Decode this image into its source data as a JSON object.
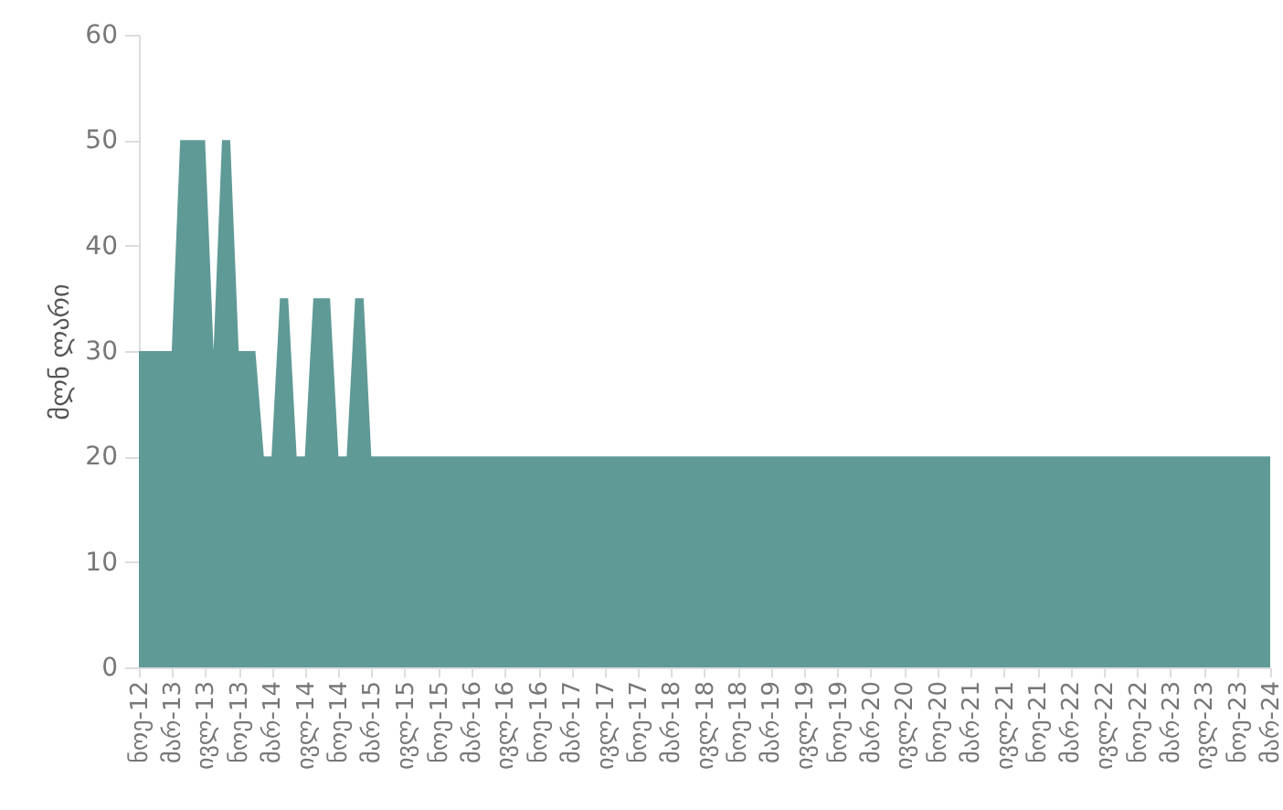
{
  "chart_data": {
    "type": "area",
    "ylabel": "მლნ ლარი",
    "color": "#5f9a96",
    "x": [
      "2012-11",
      "2012-12",
      "2013-01",
      "2013-02",
      "2013-03",
      "2013-04",
      "2013-05",
      "2013-06",
      "2013-07",
      "2013-08",
      "2013-09",
      "2013-10",
      "2013-11",
      "2013-12",
      "2014-01",
      "2014-02",
      "2014-03",
      "2014-04",
      "2014-05",
      "2014-06",
      "2014-07",
      "2014-08",
      "2014-09",
      "2014-10",
      "2014-11",
      "2014-12",
      "2015-01",
      "2015-02",
      "2015-03",
      "2015-04",
      "2015-05",
      "2015-06",
      "2015-07",
      "2015-08",
      "2015-09",
      "2015-10",
      "2015-11",
      "2015-12",
      "2016-01",
      "2016-02",
      "2016-03",
      "2016-04",
      "2016-05",
      "2016-06",
      "2016-07",
      "2016-08",
      "2016-09",
      "2016-10",
      "2016-11",
      "2016-12",
      "2017-01",
      "2017-02",
      "2017-03",
      "2017-04",
      "2017-05",
      "2017-06",
      "2017-07",
      "2017-08",
      "2017-09",
      "2017-10",
      "2017-11",
      "2017-12",
      "2018-01",
      "2018-02",
      "2018-03",
      "2018-04",
      "2018-05",
      "2018-06",
      "2018-07",
      "2018-08",
      "2018-09",
      "2018-10",
      "2018-11",
      "2018-12",
      "2019-01",
      "2019-02",
      "2019-03",
      "2019-04",
      "2019-05",
      "2019-06",
      "2019-07",
      "2019-08",
      "2019-09",
      "2019-10",
      "2019-11",
      "2019-12",
      "2020-01",
      "2020-02",
      "2020-03",
      "2020-04",
      "2020-05",
      "2020-06",
      "2020-07",
      "2020-08",
      "2020-09",
      "2020-10",
      "2020-11",
      "2020-12",
      "2021-01",
      "2021-02",
      "2021-03",
      "2021-04",
      "2021-05",
      "2021-06",
      "2021-07",
      "2021-08",
      "2021-09",
      "2021-10",
      "2021-11",
      "2021-12",
      "2022-01",
      "2022-02",
      "2022-03",
      "2022-04",
      "2022-05",
      "2022-06",
      "2022-07",
      "2022-08",
      "2022-09",
      "2022-10",
      "2022-11",
      "2022-12",
      "2023-01",
      "2023-02",
      "2023-03",
      "2023-04",
      "2023-05",
      "2023-06",
      "2023-07",
      "2023-08",
      "2023-09",
      "2023-10",
      "2023-11",
      "2023-12",
      "2024-01",
      "2024-02",
      "2024-03"
    ],
    "values": [
      30,
      30,
      30,
      30,
      30,
      50,
      50,
      50,
      50,
      30,
      50,
      50,
      30,
      30,
      30,
      20,
      20,
      35,
      35,
      20,
      20,
      35,
      35,
      35,
      20,
      20,
      35,
      35,
      20,
      20,
      20,
      20,
      20,
      20,
      20,
      20,
      20,
      20,
      20,
      20,
      20,
      20,
      20,
      20,
      20,
      20,
      20,
      20,
      20,
      20,
      20,
      20,
      20,
      20,
      20,
      20,
      20,
      20,
      20,
      20,
      20,
      20,
      20,
      20,
      20,
      20,
      20,
      20,
      20,
      20,
      20,
      20,
      20,
      20,
      20,
      20,
      20,
      20,
      20,
      20,
      20,
      20,
      20,
      20,
      20,
      20,
      20,
      20,
      20,
      20,
      20,
      20,
      20,
      20,
      20,
      20,
      20,
      20,
      20,
      20,
      20,
      20,
      20,
      20,
      20,
      20,
      20,
      20,
      20,
      20,
      20,
      20,
      20,
      20,
      20,
      20,
      20,
      20,
      20,
      20,
      20,
      20,
      20,
      20,
      20,
      20,
      20,
      20,
      20,
      20,
      20,
      20,
      20,
      20,
      20,
      20,
      20
    ],
    "xlim": [
      "2012-11",
      "2024-03"
    ],
    "xticks": [
      {
        "value": "2012-11",
        "label": "ნოე-12"
      },
      {
        "value": "2013-03",
        "label": "მარ-13"
      },
      {
        "value": "2013-07",
        "label": "ივლ-13"
      },
      {
        "value": "2013-11",
        "label": "ნოე-13"
      },
      {
        "value": "2014-03",
        "label": "მარ-14"
      },
      {
        "value": "2014-07",
        "label": "ივლ-14"
      },
      {
        "value": "2014-11",
        "label": "ნოე-14"
      },
      {
        "value": "2015-03",
        "label": "მარ-15"
      },
      {
        "value": "2015-07",
        "label": "ივლ-15"
      },
      {
        "value": "2015-11",
        "label": "ნოე-15"
      },
      {
        "value": "2016-03",
        "label": "მარ-16"
      },
      {
        "value": "2016-07",
        "label": "ივლ-16"
      },
      {
        "value": "2016-11",
        "label": "ნოე-16"
      },
      {
        "value": "2017-03",
        "label": "მარ-17"
      },
      {
        "value": "2017-07",
        "label": "ივლ-17"
      },
      {
        "value": "2017-11",
        "label": "ნოე-17"
      },
      {
        "value": "2018-03",
        "label": "მარ-18"
      },
      {
        "value": "2018-07",
        "label": "ივლ-18"
      },
      {
        "value": "2018-11",
        "label": "ნოე-18"
      },
      {
        "value": "2019-03",
        "label": "მარ-19"
      },
      {
        "value": "2019-07",
        "label": "ივლ-19"
      },
      {
        "value": "2019-11",
        "label": "ნოე-19"
      },
      {
        "value": "2020-03",
        "label": "მარ-20"
      },
      {
        "value": "2020-07",
        "label": "ივლ-20"
      },
      {
        "value": "2020-11",
        "label": "ნოე-20"
      },
      {
        "value": "2021-03",
        "label": "მარ-21"
      },
      {
        "value": "2021-07",
        "label": "ივლ-21"
      },
      {
        "value": "2021-11",
        "label": "ნოე-21"
      },
      {
        "value": "2022-03",
        "label": "მარ-22"
      },
      {
        "value": "2022-07",
        "label": "ივლ-22"
      },
      {
        "value": "2022-11",
        "label": "ნოე-22"
      },
      {
        "value": "2023-03",
        "label": "მარ-23"
      },
      {
        "value": "2023-07",
        "label": "ივლ-23"
      },
      {
        "value": "2023-11",
        "label": "ნოე-23"
      },
      {
        "value": "2024-03",
        "label": "მარ-24"
      }
    ],
    "ylim": [
      0,
      60
    ],
    "yticks": [
      0,
      10,
      20,
      30,
      40,
      50,
      60
    ]
  }
}
